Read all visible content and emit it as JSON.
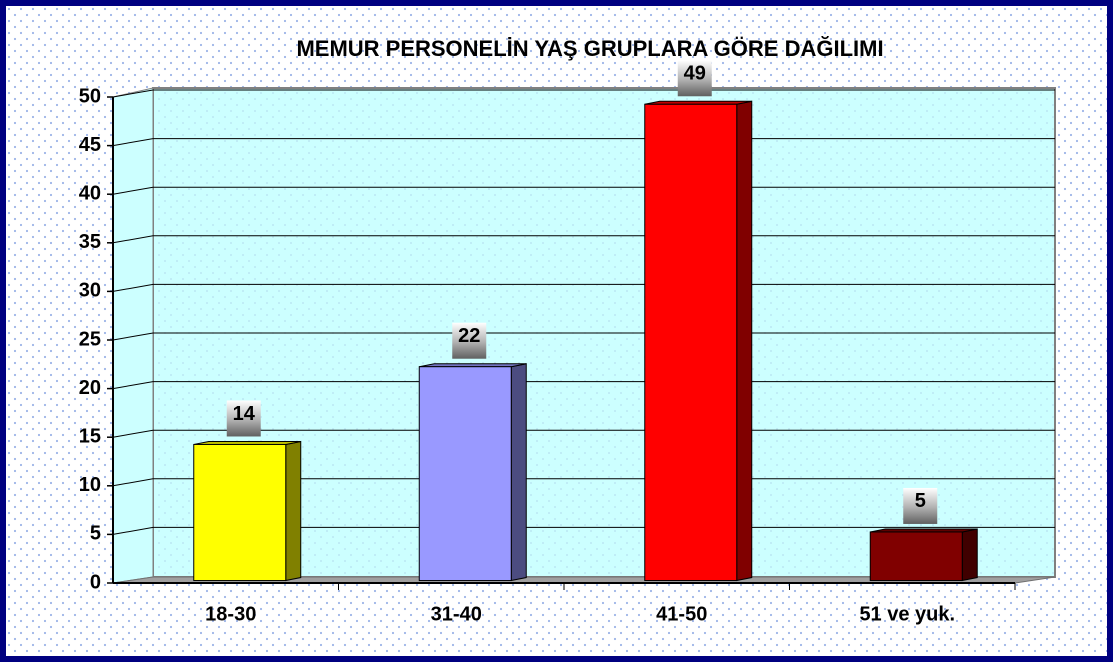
{
  "chart_data": {
    "type": "bar",
    "title": "MEMUR PERSONELİN YAŞ GRUPLARA GÖRE DAĞILIMI",
    "categories": [
      "18-30",
      "31-40",
      "41-50",
      "51 ve yuk."
    ],
    "values": [
      14,
      22,
      49,
      5
    ],
    "colors": [
      "#ffff00",
      "#9999ff",
      "#ff0000",
      "#800000"
    ],
    "ylim": [
      0,
      50
    ],
    "yticks": [
      0,
      5,
      10,
      15,
      20,
      25,
      30,
      35,
      40,
      45,
      50
    ],
    "grid": true
  }
}
